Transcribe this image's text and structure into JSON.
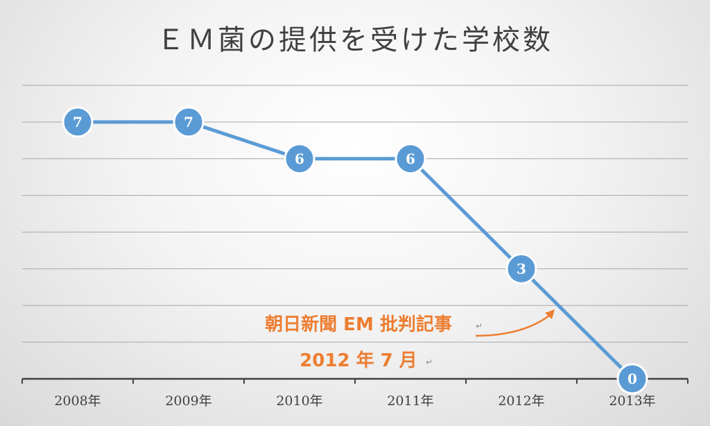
{
  "chart_data": {
    "type": "line",
    "title": "ＥＭ菌の提供を受けた学校数",
    "categories": [
      "2008年",
      "2009年",
      "2010年",
      "2011年",
      "2012年",
      "2013年"
    ],
    "series": [
      {
        "values": [
          7,
          7,
          6,
          6,
          3,
          0
        ]
      }
    ],
    "data_labels": [
      "7",
      "7",
      "6",
      "6",
      "3",
      "0"
    ],
    "ylim": [
      0,
      8
    ],
    "grid": true,
    "legend": false,
    "annotation": {
      "lines": [
        "朝日新聞 EM 批判記事",
        "2012 年 7 月"
      ],
      "mark": "↵"
    },
    "colors": {
      "line": "#5b9bd5",
      "marker": "#5b9bd5",
      "marker_border": "#ffffff",
      "annotation": "#ed7d31",
      "grid": "#a6a6a6",
      "axis": "#404040"
    }
  }
}
